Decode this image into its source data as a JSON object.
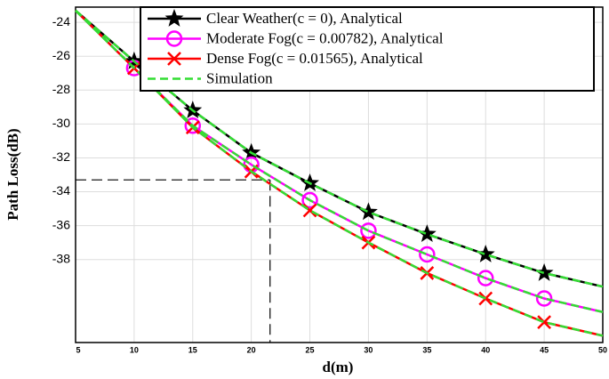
{
  "chart_data": {
    "type": "line",
    "x_label": "d(m)",
    "y_label": "Path Loss(dB)",
    "x": [
      5,
      10,
      15,
      20,
      25,
      30,
      35,
      40,
      45,
      50
    ],
    "xlim": [
      5,
      50
    ],
    "ylim": [
      -42.9,
      -23.1
    ],
    "xticks": [
      5,
      10,
      15,
      20,
      25,
      30,
      35,
      40,
      45,
      50
    ],
    "yticks": [
      -24,
      -26,
      -28,
      -30,
      -32,
      -34,
      -36,
      -38
    ],
    "grid": true,
    "legend": "upper right",
    "series": [
      {
        "name": "Clear Weather(c = 0), Analytical",
        "color": "#000000",
        "marker": "star",
        "values": [
          -23.3,
          -26.3,
          -29.2,
          -31.7,
          -33.5,
          -35.2,
          -36.5,
          -37.7,
          -38.8,
          -39.6
        ]
      },
      {
        "name": "Moderate Fog(c = 0.00782), Analytical",
        "color": "#ff00ff",
        "marker": "circle",
        "values": [
          -23.3,
          -26.7,
          -30.1,
          -32.4,
          -34.5,
          -36.3,
          -37.7,
          -39.1,
          -40.3,
          -41.1
        ]
      },
      {
        "name": "Dense Fog(c = 0.01565), Analytical",
        "color": "#ff0000",
        "marker": "x",
        "values": [
          -23.3,
          -26.7,
          -30.2,
          -32.8,
          -35.1,
          -37.0,
          -38.8,
          -40.3,
          -41.7,
          -42.5
        ]
      },
      {
        "name": "Simulation",
        "color": "#33dd33",
        "marker": "dash",
        "curves": [
          [
            -23.3,
            -26.3,
            -29.2,
            -31.7,
            -33.5,
            -35.2,
            -36.5,
            -37.7,
            -38.8,
            -39.6
          ],
          [
            -23.3,
            -26.7,
            -30.1,
            -32.4,
            -34.5,
            -36.3,
            -37.7,
            -39.1,
            -40.3,
            -41.1
          ],
          [
            -23.3,
            -26.7,
            -30.2,
            -32.8,
            -35.1,
            -37.0,
            -38.8,
            -40.3,
            -41.7,
            -42.5
          ]
        ]
      }
    ],
    "reference_point": {
      "x": 21.6,
      "y": -33.3
    }
  }
}
